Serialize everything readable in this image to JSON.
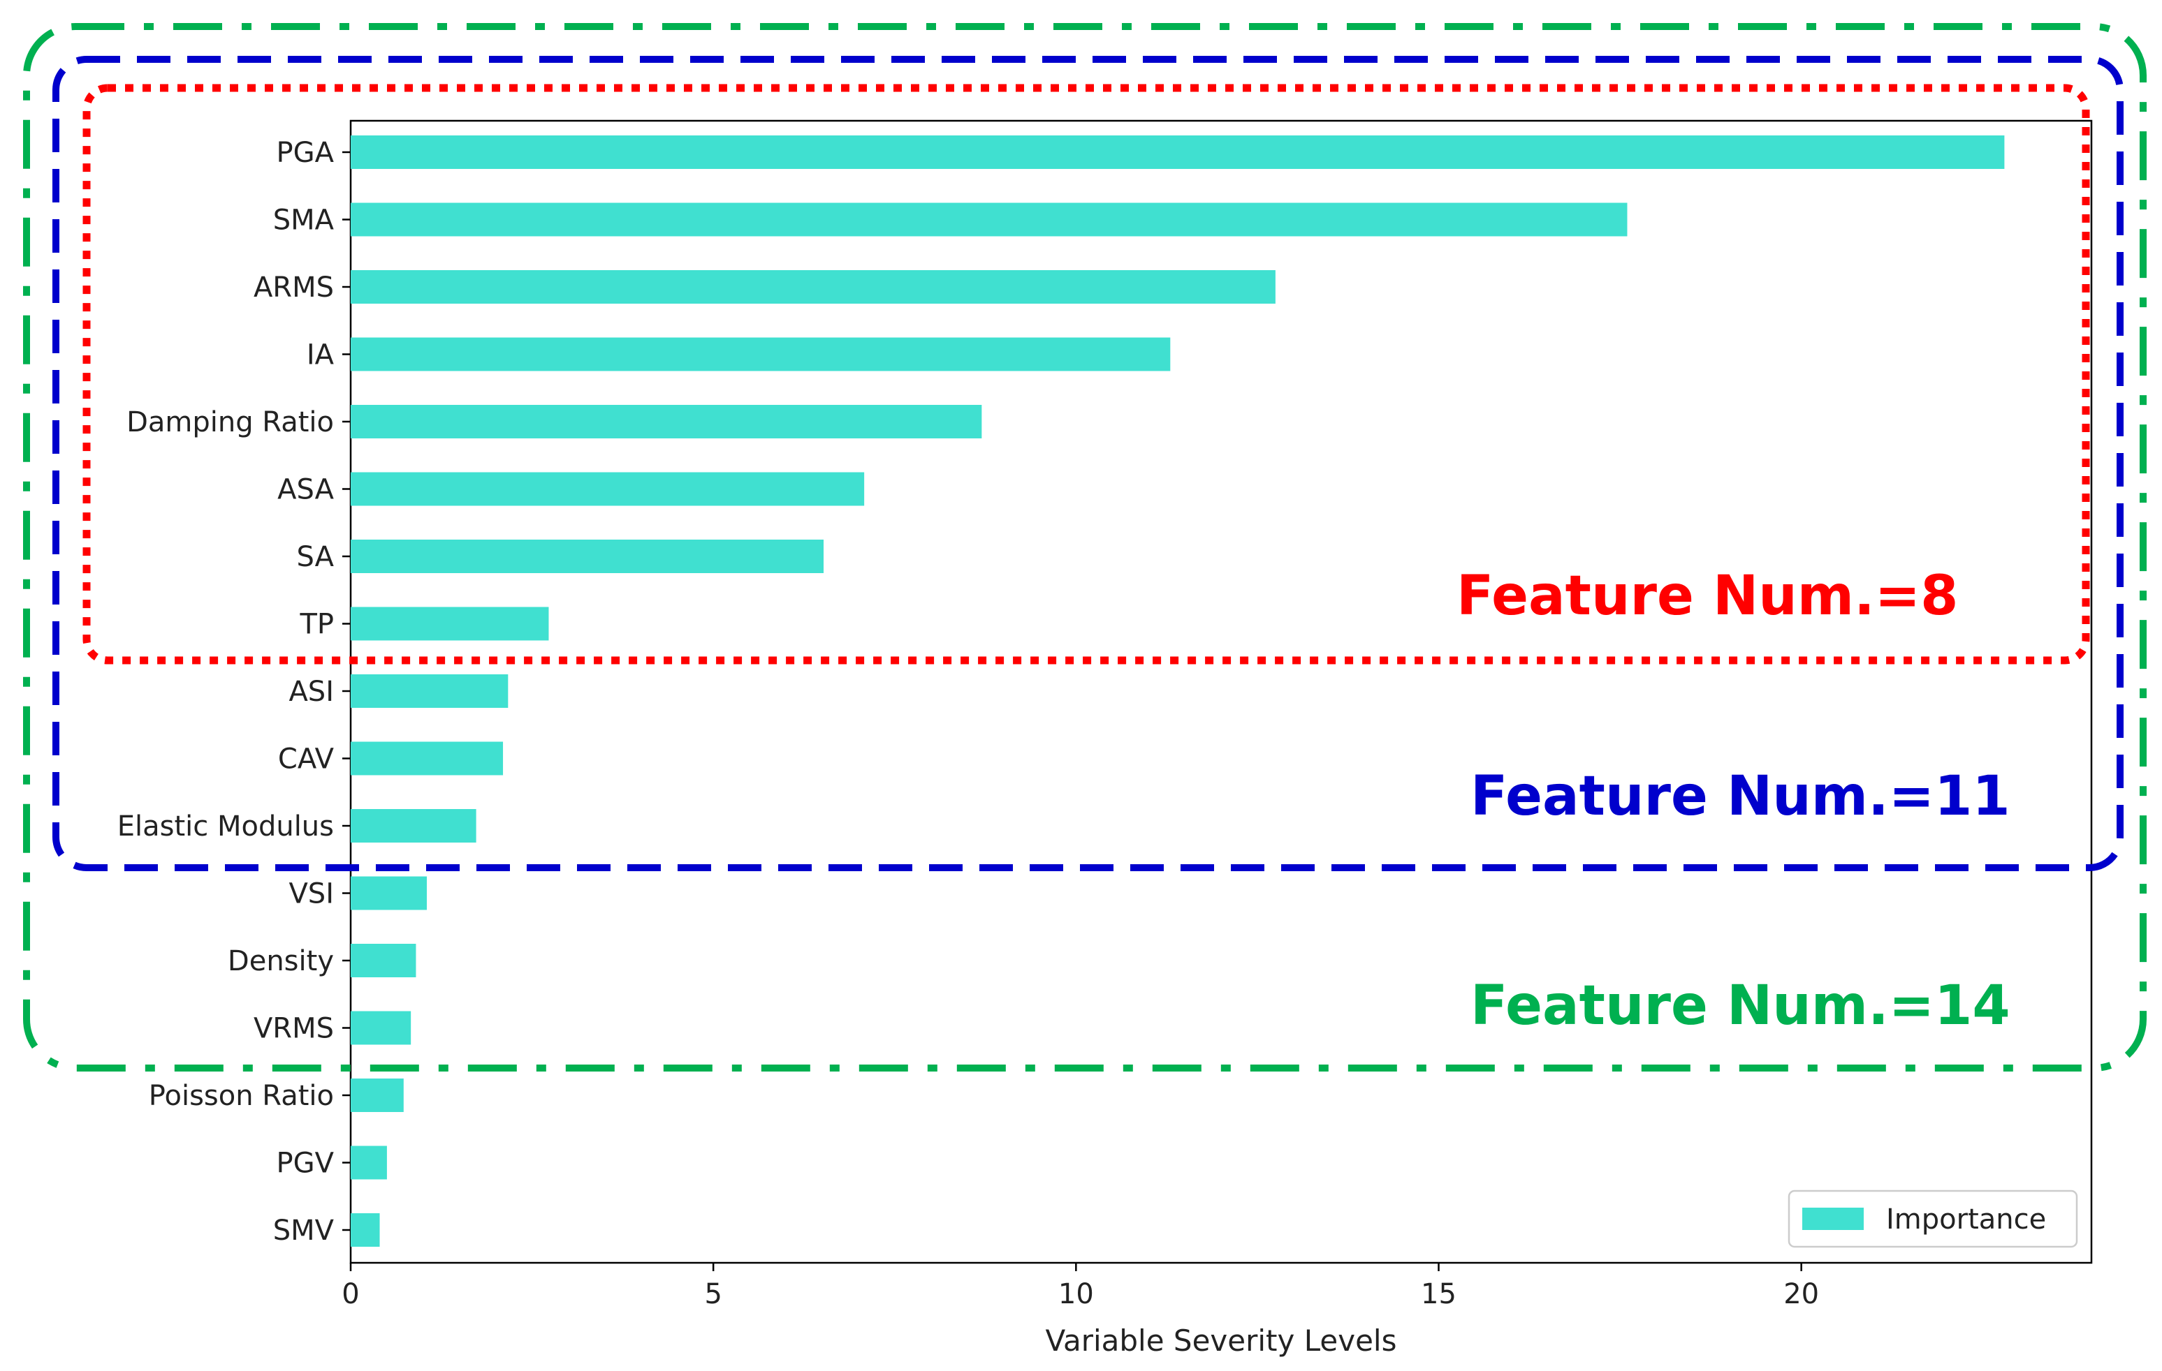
{
  "chart_data": {
    "type": "bar",
    "orientation": "horizontal",
    "title": "",
    "xlabel": "Variable Severity Levels",
    "ylabel": "",
    "xlim": [
      0,
      24
    ],
    "xticks": [
      0,
      5,
      10,
      15,
      20
    ],
    "grid": false,
    "legend": "bottom-right",
    "categories": [
      "PGA",
      "SMA",
      "ARMS",
      "IA",
      "Damping Ratio",
      "ASA",
      "SA",
      "TP",
      "ASI",
      "CAV",
      "Elastic Modulus",
      "VSI",
      "Density",
      "VRMS",
      "Poisson Ratio",
      "PGV",
      "SMV"
    ],
    "series": [
      {
        "name": "Importance",
        "color": "#40e0d0",
        "values": [
          22.8,
          17.6,
          12.75,
          11.3,
          8.7,
          7.08,
          6.52,
          2.73,
          2.17,
          2.1,
          1.73,
          1.05,
          0.9,
          0.83,
          0.73,
          0.5,
          0.4
        ]
      }
    ],
    "annotations": [
      {
        "label": "Feature Num.=8",
        "count": 8,
        "color": "#ff0000",
        "style": "dotted"
      },
      {
        "label": "Feature Num.=11",
        "count": 11,
        "color": "#0000cc",
        "style": "dashed"
      },
      {
        "label": "Feature Num.=14",
        "count": 14,
        "color": "#00b050",
        "style": "dash-dot"
      }
    ]
  }
}
